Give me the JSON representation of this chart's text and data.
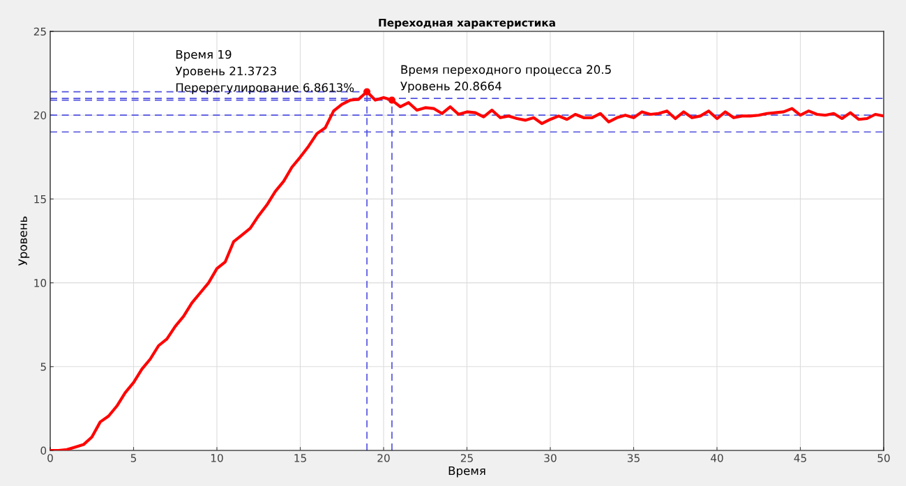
{
  "chart_data": {
    "type": "line",
    "title": "Переходная характеристика",
    "xlabel": "Время",
    "ylabel": "Уровень",
    "xlim": [
      0,
      50
    ],
    "ylim": [
      0,
      25
    ],
    "xticks": [
      0,
      5,
      10,
      15,
      20,
      25,
      30,
      35,
      40,
      45,
      50
    ],
    "yticks": [
      0,
      5,
      10,
      15,
      20,
      25
    ],
    "grid": true,
    "legend": false,
    "series": [
      {
        "color": "#ff0000",
        "line_style": "solid",
        "marker": "none",
        "x": [
          0,
          0.5,
          1,
          1.5,
          2,
          2.5,
          3,
          3.5,
          4,
          4.5,
          5,
          5.5,
          6,
          6.5,
          7,
          7.5,
          8,
          8.5,
          9,
          9.5,
          10,
          10.5,
          11,
          11.5,
          12,
          12.5,
          13,
          13.5,
          14,
          14.5,
          15,
          15.5,
          16,
          16.5,
          17,
          17.5,
          18,
          18.5,
          19,
          19.5,
          20,
          20.5,
          21,
          21.5,
          22,
          22.5,
          23,
          23.5,
          24,
          24.5,
          25,
          25.5,
          26,
          26.5,
          27,
          27.5,
          28,
          28.5,
          29,
          29.5,
          30,
          30.5,
          31,
          31.5,
          32,
          32.5,
          33,
          33.5,
          34,
          34.5,
          35,
          35.5,
          36,
          36.5,
          37,
          37.5,
          38,
          38.5,
          39,
          39.5,
          40,
          40.5,
          41,
          41.5,
          42,
          42.5,
          43,
          43.5,
          44,
          44.5,
          45,
          45.5,
          46,
          46.5,
          47,
          47.5,
          48,
          48.5,
          49,
          49.5,
          50
        ],
        "values": [
          0,
          0,
          0.05,
          0.2,
          0.35,
          0.8,
          1.7,
          2.05,
          2.65,
          3.45,
          4.05,
          4.85,
          5.45,
          6.25,
          6.65,
          7.4,
          8.0,
          8.8,
          9.4,
          10.0,
          10.85,
          11.25,
          12.45,
          12.85,
          13.25,
          14.0,
          14.65,
          15.45,
          16.05,
          16.9,
          17.5,
          18.15,
          18.9,
          19.25,
          20.25,
          20.65,
          20.9,
          20.95,
          21.4,
          20.9,
          21.05,
          20.9,
          20.5,
          20.75,
          20.3,
          20.45,
          20.4,
          20.1,
          20.5,
          20.05,
          20.2,
          20.15,
          19.9,
          20.3,
          19.85,
          19.95,
          19.8,
          19.7,
          19.85,
          19.5,
          19.75,
          19.95,
          19.75,
          20.05,
          19.85,
          19.85,
          20.1,
          19.6,
          19.85,
          20.0,
          19.85,
          20.2,
          20.05,
          20.1,
          20.25,
          19.8,
          20.2,
          19.85,
          19.95,
          20.25,
          19.8,
          20.2,
          19.85,
          19.95,
          19.95,
          20.0,
          20.1,
          20.15,
          20.2,
          20.4,
          20.0,
          20.25,
          20.05,
          20.0,
          20.1,
          19.8,
          20.15,
          19.75,
          19.8,
          20.05,
          19.95
        ]
      },
      {
        "type": "scatter",
        "color": "#ff0000",
        "marker": "circle",
        "x": [
          19,
          20.5
        ],
        "values": [
          21.4,
          20.9
        ]
      },
      {
        "type": "line",
        "color": "#5050e0",
        "line_style": "dashed",
        "marker": "none",
        "x": [
          0,
          19
        ],
        "values": [
          21.4,
          21.4
        ]
      },
      {
        "type": "line",
        "color": "#5050e0",
        "line_style": "dashed",
        "marker": "none",
        "x": [
          0,
          20.5
        ],
        "values": [
          20.9,
          20.9
        ]
      },
      {
        "type": "line",
        "color": "#5050e0",
        "line_style": "dashed",
        "marker": "none",
        "x": [
          19,
          19
        ],
        "values": [
          0,
          21.4
        ]
      },
      {
        "type": "line",
        "color": "#5050e0",
        "line_style": "dashed",
        "marker": "none",
        "x": [
          20.5,
          20.5
        ],
        "values": [
          0,
          20.9
        ]
      }
    ],
    "ref_lines": [
      {
        "axis": "y",
        "value": 21,
        "color": "#5050e0",
        "line_style": "dashed"
      },
      {
        "axis": "y",
        "value": 20,
        "color": "#5050e0",
        "line_style": "dashed"
      },
      {
        "axis": "y",
        "value": 19,
        "color": "#5050e0",
        "line_style": "dashed"
      }
    ],
    "annotations": [
      "Время 19\nУровень 21.3723\nПеререгулирование 6.8613%",
      "Время переходного процесса 20.5\nУровень 20.8664"
    ]
  }
}
